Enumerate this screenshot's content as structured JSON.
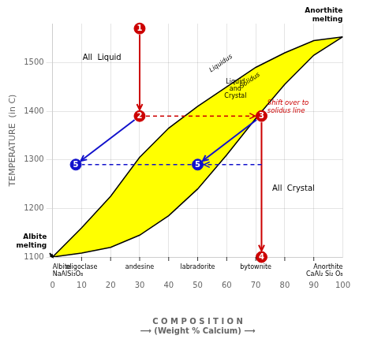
{
  "chart_data": {
    "type": "line",
    "xlabel": "C O M P O S I T I O N\n⟶ (Weight % Calcium) ⟶",
    "ylabel": "TEMPERATURE  (in C)",
    "xlim": [
      0,
      100
    ],
    "ylim": [
      1100,
      1580
    ],
    "xticks": [
      0,
      10,
      20,
      30,
      40,
      50,
      60,
      70,
      80,
      90,
      100
    ],
    "yticks": [
      1100,
      1200,
      1300,
      1400,
      1500
    ],
    "grid": true,
    "x": [
      0,
      10,
      20,
      30,
      40,
      50,
      60,
      70,
      80,
      90,
      100
    ],
    "series": [
      {
        "name": "Liquidus",
        "color": "#000000",
        "values": [
          1100,
          1160,
          1225,
          1305,
          1365,
          1410,
          1450,
          1490,
          1520,
          1545,
          1553
        ],
        "label_x": 58,
        "label_y": 1498
      },
      {
        "name": "Solidus",
        "color": "#000000",
        "values": [
          1100,
          1108,
          1120,
          1145,
          1185,
          1240,
          1310,
          1385,
          1455,
          1515,
          1553
        ],
        "label_x": 68,
        "label_y": 1463
      }
    ],
    "fill": {
      "between": [
        "Liquidus",
        "Solidus"
      ],
      "color": "#FFFF00"
    },
    "points": [
      {
        "label": "1",
        "x": 30,
        "y": 1570,
        "color": "#CC0000"
      },
      {
        "label": "2",
        "x": 30,
        "y": 1390,
        "color": "#CC0000"
      },
      {
        "label": "3",
        "x": 72,
        "y": 1390,
        "color": "#CC0000"
      },
      {
        "label": "4",
        "x": 72,
        "y": 1100,
        "color": "#CC0000"
      },
      {
        "label": "5",
        "x": 8,
        "y": 1290,
        "color": "#1111CC"
      },
      {
        "label": "5",
        "x": 50,
        "y": 1290,
        "color": "#1111CC"
      }
    ],
    "arrows": [
      {
        "x": [
          30,
          30
        ],
        "y": [
          1570,
          1390
        ],
        "color": "#CC0000",
        "line_style": "solid",
        "marker": "arrow"
      },
      {
        "x": [
          30,
          72
        ],
        "y": [
          1390,
          1390
        ],
        "color": "#CC0000",
        "line_style": "dashed",
        "marker": "arrow"
      },
      {
        "x": [
          72,
          72
        ],
        "y": [
          1390,
          1100
        ],
        "color": "#CC0000",
        "line_style": "solid",
        "marker": "arrow"
      },
      {
        "x": [
          72,
          50
        ],
        "y": [
          1290,
          1290
        ],
        "color": "#1111CC",
        "line_style": "dashed",
        "marker": "arrow"
      },
      {
        "x": [
          50,
          8
        ],
        "y": [
          1290,
          1290
        ],
        "color": "#1111CC",
        "line_style": "dashed",
        "marker": "none"
      },
      {
        "x": [
          30,
          8
        ],
        "y": [
          1390,
          1290
        ],
        "color": "#1111CC",
        "line_style": "solid",
        "marker": "arrow"
      },
      {
        "x": [
          72,
          50
        ],
        "y": [
          1390,
          1290
        ],
        "color": "#1111CC",
        "line_style": "solid",
        "marker": "arrow"
      },
      {
        "x": [
          -1,
          0
        ],
        "y": [
          1108,
          1100
        ],
        "color": "#000000",
        "line_style": "solid",
        "marker": "arrow"
      }
    ],
    "region_labels": [
      {
        "text": "All  Liquid",
        "x": 17,
        "y": 1510
      },
      {
        "text": "All  Crystal",
        "x": 83,
        "y": 1240
      },
      {
        "text": "Liquid\nand\nCrystal",
        "x": 63,
        "y": 1445
      }
    ],
    "notes": [
      {
        "text": "Shift over to\nsolidus line",
        "x": 74,
        "y": 1408,
        "color": "#CC0000"
      }
    ],
    "end_labels": [
      {
        "text": "Anorthite\nmelting",
        "x": 100,
        "y": 1575
      },
      {
        "text": "Albite\nmelting",
        "x": -2,
        "y": 1110
      }
    ],
    "mineral_ticks": [
      10,
      20,
      30,
      40,
      50,
      60,
      70,
      80,
      90
    ],
    "minerals": [
      {
        "x": 0,
        "text": "Albite\nNaAlSi₃O₈"
      },
      {
        "x": 10,
        "text": "oligoclase"
      },
      {
        "x": 30,
        "text": "andesine"
      },
      {
        "x": 50,
        "text": "labradorite"
      },
      {
        "x": 70,
        "text": "bytownite"
      },
      {
        "x": 100,
        "text": "Anorthite\nCaAl₂ Si₂ O₈"
      }
    ]
  }
}
